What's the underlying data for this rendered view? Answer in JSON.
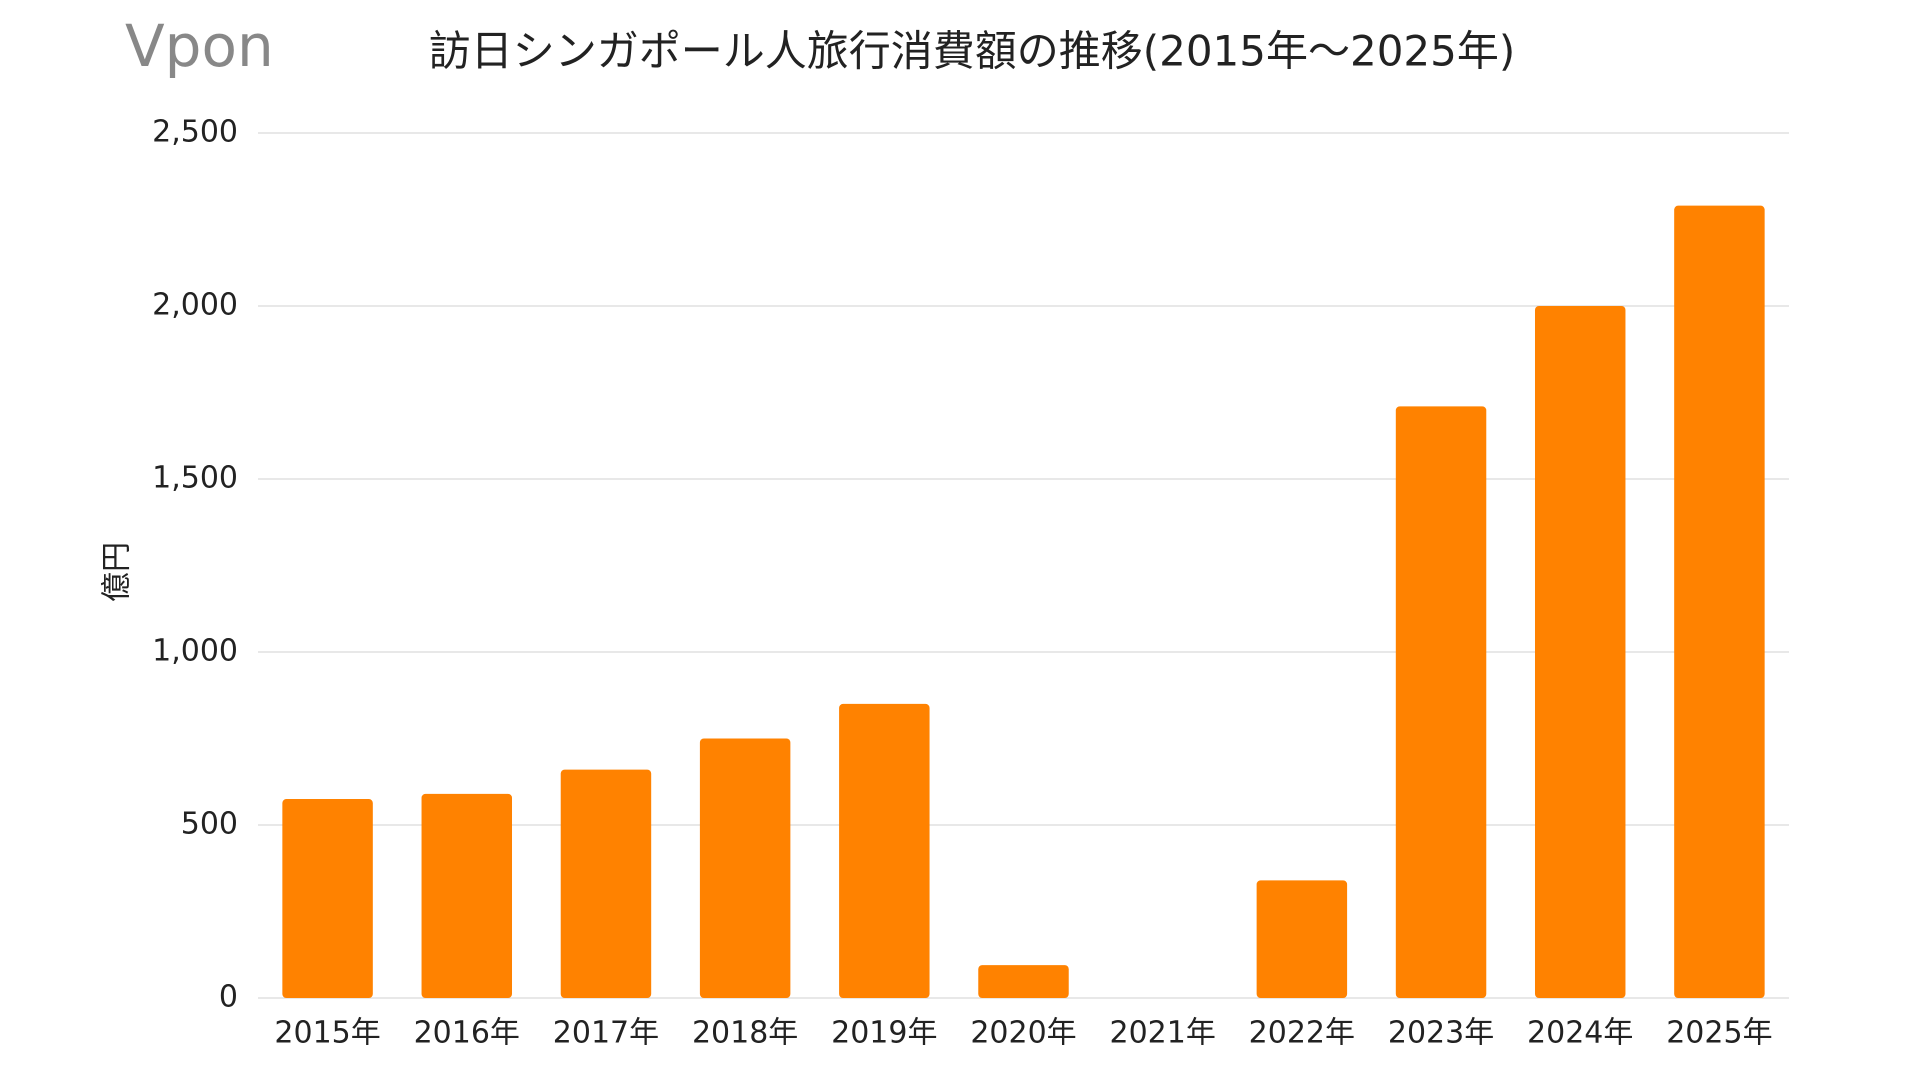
{
  "logo": "Vpon",
  "chart_data": {
    "type": "bar",
    "title": "訪日シンガポール人旅行消費額の推移(2015年～2025年)",
    "y_label": "億円",
    "categories": [
      "2015年",
      "2016年",
      "2017年",
      "2018年",
      "2019年",
      "2020年",
      "2021年",
      "2022年",
      "2023年",
      "2024年",
      "2025年"
    ],
    "values": [
      575,
      590,
      660,
      750,
      850,
      95,
      0,
      340,
      1710,
      2000,
      2290
    ],
    "color": "#ff8200",
    "ylim": [
      0,
      2500
    ],
    "yticks": [
      0,
      500,
      {
        "value": 1000,
        "label": "1,000"
      },
      {
        "value": 1500,
        "label": "1,500"
      },
      {
        "value": 2000,
        "label": "2,000"
      },
      {
        "value": 2500,
        "label": "2,500"
      }
    ],
    "grid": true
  }
}
